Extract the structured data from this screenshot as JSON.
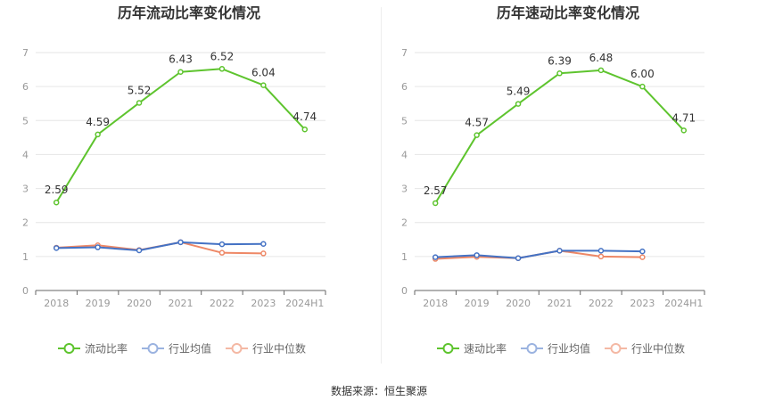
{
  "source_label": "数据来源：恒生聚源",
  "colors": {
    "main": "#5ec42e",
    "avg": "#4472c4",
    "median": "#ee8866",
    "avg_legend": "#9bb3e0",
    "median_legend": "#f4b8a4",
    "grid": "#e6e6e6",
    "axis": "#666666",
    "tick_text": "#999999",
    "title": "#333333"
  },
  "chart_data": [
    {
      "type": "line",
      "title": "历年流动比率变化情况",
      "categories": [
        "2018",
        "2019",
        "2020",
        "2021",
        "2022",
        "2023",
        "2024H1"
      ],
      "ylim": [
        0,
        7
      ],
      "yticks": [
        0,
        1,
        2,
        3,
        4,
        5,
        6,
        7
      ],
      "grid": true,
      "legend_position": "bottom",
      "series": [
        {
          "name": "流动比率",
          "role": "main",
          "values": [
            2.59,
            4.59,
            5.52,
            6.43,
            6.52,
            6.04,
            4.74
          ],
          "labels": [
            "2.59",
            "4.59",
            "5.52",
            "6.43",
            "6.52",
            "6.04",
            "4.74"
          ]
        },
        {
          "name": "行业均值",
          "role": "avg",
          "values": [
            1.25,
            1.27,
            1.18,
            1.42,
            1.36,
            1.37,
            null
          ]
        },
        {
          "name": "行业中位数",
          "role": "median",
          "values": [
            1.26,
            1.33,
            1.19,
            1.42,
            1.11,
            1.09,
            null
          ]
        }
      ]
    },
    {
      "type": "line",
      "title": "历年速动比率变化情况",
      "categories": [
        "2018",
        "2019",
        "2020",
        "2021",
        "2022",
        "2023",
        "2024H1"
      ],
      "ylim": [
        0,
        7
      ],
      "yticks": [
        0,
        1,
        2,
        3,
        4,
        5,
        6,
        7
      ],
      "grid": true,
      "legend_position": "bottom",
      "series": [
        {
          "name": "速动比率",
          "role": "main",
          "values": [
            2.57,
            4.57,
            5.49,
            6.39,
            6.48,
            6.0,
            4.71
          ],
          "labels": [
            "2.57",
            "4.57",
            "5.49",
            "6.39",
            "6.48",
            "6.00",
            "4.71"
          ]
        },
        {
          "name": "行业均值",
          "role": "avg",
          "values": [
            0.98,
            1.04,
            0.95,
            1.17,
            1.17,
            1.15,
            null
          ]
        },
        {
          "name": "行业中位数",
          "role": "median",
          "values": [
            0.93,
            0.99,
            0.95,
            1.17,
            1.0,
            0.98,
            null
          ]
        }
      ]
    }
  ]
}
